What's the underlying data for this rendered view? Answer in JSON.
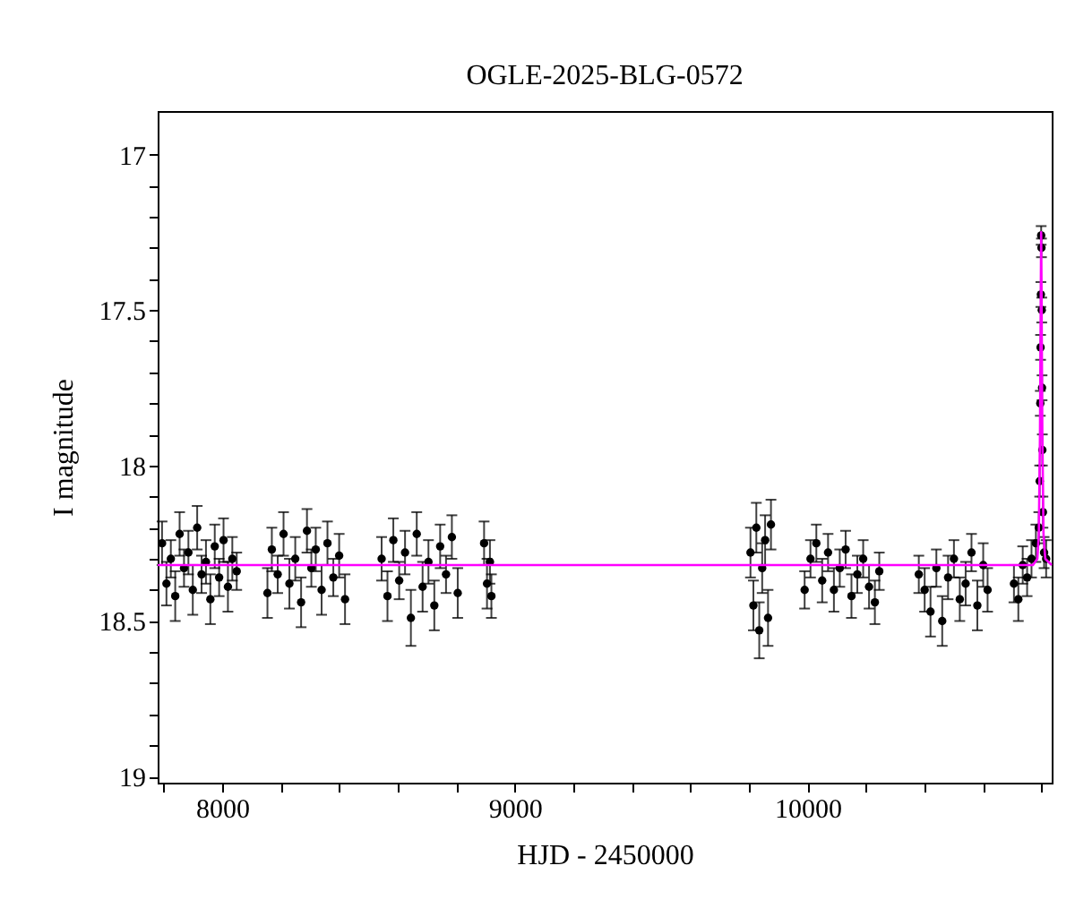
{
  "chart_data": {
    "type": "scatter",
    "title": "OGLE-2025-BLG-0572",
    "xlabel": "HJD - 2450000",
    "ylabel": "I magnitude",
    "xlim": [
      7780,
      10834
    ],
    "ylim": [
      19.02,
      16.86
    ],
    "xticks": [
      {
        "value": 7800,
        "label": null
      },
      8000,
      {
        "value": 8200,
        "label": null
      },
      {
        "value": 8400,
        "label": null
      },
      {
        "value": 8600,
        "label": null
      },
      {
        "value": 8800,
        "label": null
      },
      9000,
      {
        "value": 9200,
        "label": null
      },
      {
        "value": 9400,
        "label": null
      },
      {
        "value": 9600,
        "label": null
      },
      {
        "value": 9800,
        "label": null
      },
      10000,
      {
        "value": 10200,
        "label": null
      },
      {
        "value": 10400,
        "label": null
      },
      {
        "value": 10600,
        "label": null
      },
      {
        "value": 10800,
        "label": null
      }
    ],
    "yticks": [
      17,
      {
        "value": 17.1,
        "label": null
      },
      {
        "value": 17.2,
        "label": null
      },
      {
        "value": 17.3,
        "label": null
      },
      {
        "value": 17.4,
        "label": null
      },
      17.5,
      {
        "value": 17.6,
        "label": null
      },
      {
        "value": 17.7,
        "label": null
      },
      {
        "value": 17.8,
        "label": null
      },
      {
        "value": 17.9,
        "label": null
      },
      18,
      {
        "value": 18.1,
        "label": null
      },
      {
        "value": 18.2,
        "label": null
      },
      {
        "value": 18.3,
        "label": null
      },
      {
        "value": 18.4,
        "label": null
      },
      18.5,
      {
        "value": 18.6,
        "label": null
      },
      {
        "value": 18.7,
        "label": null
      },
      {
        "value": 18.8,
        "label": null
      },
      {
        "value": 18.9,
        "label": null
      },
      19
    ],
    "grid": false,
    "marker": "circle",
    "series": [
      {
        "type": "scatter",
        "color": "#000000",
        "x": [
          7795,
          7810,
          7825,
          7840,
          7855,
          7870,
          7885,
          7900,
          7915,
          7930,
          7945,
          7960,
          7975,
          7990,
          8005,
          8020,
          8035,
          8050,
          8155,
          8170,
          8190,
          8210,
          8230,
          8250,
          8270,
          8290,
          8305,
          8320,
          8340,
          8360,
          8380,
          8400,
          8420,
          8545,
          8565,
          8585,
          8605,
          8625,
          8645,
          8665,
          8685,
          8705,
          8725,
          8745,
          8765,
          8785,
          8805,
          8895,
          8905,
          8915,
          8920,
          9805,
          9815,
          9825,
          9835,
          9845,
          9855,
          9865,
          9875,
          9990,
          10010,
          10030,
          10050,
          10070,
          10090,
          10110,
          10130,
          10150,
          10170,
          10190,
          10210,
          10230,
          10245,
          10380,
          10400,
          10420,
          10440,
          10460,
          10480,
          10500,
          10520,
          10540,
          10560,
          10580,
          10600,
          10615,
          10705,
          10720,
          10735,
          10750,
          10765,
          10780,
          10790,
          10793,
          10795,
          10796,
          10797,
          10798,
          10799,
          10800,
          10801,
          10802,
          10804,
          10808,
          10815
        ],
        "values": [
          18.25,
          18.38,
          18.3,
          18.42,
          18.22,
          18.33,
          18.28,
          18.4,
          18.2,
          18.35,
          18.31,
          18.43,
          18.26,
          18.36,
          18.24,
          18.39,
          18.3,
          18.34,
          18.41,
          18.27,
          18.35,
          18.22,
          18.38,
          18.3,
          18.44,
          18.21,
          18.33,
          18.27,
          18.4,
          18.25,
          18.36,
          18.29,
          18.43,
          18.3,
          18.42,
          18.24,
          18.37,
          18.28,
          18.49,
          18.22,
          18.39,
          18.31,
          18.45,
          18.26,
          18.35,
          18.23,
          18.41,
          18.25,
          18.38,
          18.31,
          18.42,
          18.28,
          18.45,
          18.2,
          18.53,
          18.33,
          18.24,
          18.49,
          18.19,
          18.4,
          18.3,
          18.25,
          18.37,
          18.28,
          18.4,
          18.33,
          18.27,
          18.42,
          18.35,
          18.3,
          18.39,
          18.44,
          18.34,
          18.35,
          18.4,
          18.47,
          18.33,
          18.5,
          18.36,
          18.3,
          18.43,
          18.38,
          18.28,
          18.45,
          18.32,
          18.4,
          18.38,
          18.43,
          18.32,
          18.36,
          18.3,
          18.25,
          18.2,
          18.05,
          17.8,
          17.62,
          17.45,
          17.26,
          17.3,
          17.5,
          17.75,
          17.95,
          18.15,
          18.28,
          18.3
        ],
        "errors": [
          0.07,
          0.07,
          0.06,
          0.08,
          0.07,
          0.06,
          0.07,
          0.08,
          0.07,
          0.06,
          0.07,
          0.08,
          0.07,
          0.06,
          0.07,
          0.08,
          0.07,
          0.06,
          0.08,
          0.07,
          0.06,
          0.07,
          0.08,
          0.07,
          0.08,
          0.07,
          0.06,
          0.07,
          0.08,
          0.07,
          0.06,
          0.07,
          0.08,
          0.07,
          0.08,
          0.07,
          0.06,
          0.07,
          0.09,
          0.07,
          0.08,
          0.07,
          0.08,
          0.07,
          0.06,
          0.07,
          0.08,
          0.07,
          0.08,
          0.07,
          0.07,
          0.08,
          0.08,
          0.08,
          0.09,
          0.08,
          0.08,
          0.09,
          0.08,
          0.06,
          0.06,
          0.06,
          0.07,
          0.06,
          0.07,
          0.06,
          0.06,
          0.07,
          0.06,
          0.06,
          0.07,
          0.07,
          0.06,
          0.06,
          0.07,
          0.08,
          0.06,
          0.08,
          0.07,
          0.06,
          0.07,
          0.07,
          0.06,
          0.08,
          0.07,
          0.07,
          0.06,
          0.07,
          0.06,
          0.06,
          0.06,
          0.06,
          0.05,
          0.05,
          0.04,
          0.04,
          0.04,
          0.03,
          0.03,
          0.04,
          0.04,
          0.05,
          0.05,
          0.05,
          0.06
        ]
      },
      {
        "type": "line",
        "marker": "none",
        "color": "#ff00ff",
        "x": [
          7780,
          10770,
          10785,
          10790,
          10794,
          10797,
          10798,
          10799,
          10802,
          10806,
          10812,
          10834
        ],
        "values": [
          18.32,
          18.32,
          18.3,
          18.22,
          17.9,
          17.4,
          17.25,
          17.4,
          17.9,
          18.22,
          18.3,
          18.32
        ]
      }
    ]
  }
}
